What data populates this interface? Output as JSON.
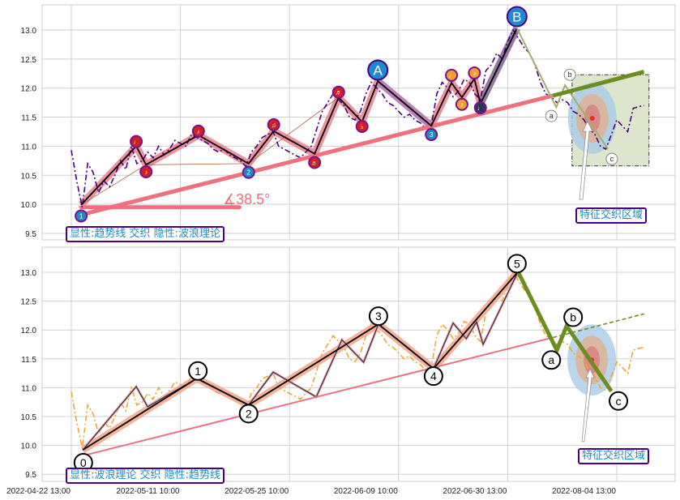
{
  "colors": {
    "trend": "#f07080",
    "wave_black": "#000000",
    "price_top": "#4b0082",
    "price_bottom": "#f0a830",
    "correction": "#6b8e23",
    "band_pink": "#e88090",
    "band_orange": "#f4a080",
    "band_purple": "#b080c0",
    "zone_fill": "#dde5cc",
    "label_blue": "#1f8ac0",
    "box_border": "#4b0082"
  },
  "x_tick_labels": [
    "2022-04-22 13:00",
    "2022-05-11 10:00",
    "2022-05-25 10:00",
    "2022-06-09 10:00",
    "2022-06-30 13:00",
    "2022-08-04 13:00"
  ],
  "x_tick_index": [
    0,
    20,
    40,
    60,
    80,
    100
  ],
  "annotations": {
    "angle": "∡38.5°",
    "zone_top": "特征交织区域",
    "zone_bottom": "特征交织区域",
    "legend_top": "显性:趋势线 交织 隐性:波浪理论",
    "legend_bottom": "显性:波浪理论 交织 隐性:趋势线"
  },
  "chart_data": [
    {
      "type": "line",
      "panel": "top",
      "ylim": [
        9.39,
        13.43
      ],
      "xlim": [
        -5.4,
        110.6
      ],
      "grid": true,
      "yticks": [
        9.5,
        10.0,
        10.5,
        11.0,
        11.5,
        12.0,
        12.5,
        13.0
      ],
      "price": [
        10.93,
        10.4,
        9.95,
        10.7,
        10.55,
        10.2,
        10.4,
        10.3,
        10.5,
        10.75,
        10.6,
        11.0,
        10.7,
        10.75,
        10.9,
        10.8,
        11.0,
        10.85,
        10.95,
        11.1,
        11.05,
        11.0,
        11.2,
        11.15,
        11.1,
        11.05,
        10.95,
        10.9,
        10.95,
        10.85,
        10.8,
        10.75,
        10.65,
        10.9,
        11.0,
        11.15,
        11.2,
        11.25,
        11.0,
        10.95,
        10.9,
        10.85,
        10.8,
        10.9,
        11.0,
        11.3,
        11.6,
        11.75,
        11.9,
        11.8,
        11.7,
        11.5,
        11.45,
        11.6,
        11.9,
        12.1,
        12.0,
        11.9,
        11.75,
        11.7,
        11.6,
        11.5,
        11.55,
        11.45,
        11.4,
        11.3,
        11.35,
        11.9,
        12.1,
        12.0,
        11.85,
        11.95,
        12.15,
        12.1,
        11.9,
        11.8,
        12.3,
        12.4,
        12.6,
        12.5,
        12.8,
        13.0,
        12.85,
        12.7,
        12.6,
        12.4,
        12.1,
        11.9,
        11.85,
        11.75,
        11.8,
        11.75,
        11.6,
        11.55,
        11.45,
        11.3,
        11.2,
        11.0,
        10.95,
        11.2,
        11.45,
        11.35,
        11.25,
        11.65,
        11.68,
        11.7
      ],
      "waves": [
        [
          1.8,
          9.99
        ],
        [
          11.9,
          11.0
        ],
        [
          13.7,
          10.68
        ],
        [
          23.3,
          11.19
        ],
        [
          32.5,
          10.7
        ],
        [
          37.1,
          11.26
        ],
        [
          44.6,
          10.87
        ],
        [
          49.0,
          11.84
        ],
        [
          53.3,
          11.42
        ],
        [
          56.2,
          12.12
        ],
        [
          66.0,
          11.35
        ],
        [
          69.7,
          12.09
        ],
        [
          71.6,
          11.84
        ],
        [
          73.9,
          12.16
        ],
        [
          75.0,
          11.73
        ],
        [
          81.7,
          13.03
        ]
      ],
      "markers": [
        {
          "i": 1.8,
          "v": 9.8,
          "glyph": "1",
          "color": "#1f8ac0"
        },
        {
          "i": 11.9,
          "v": 11.08,
          "glyph": "♩",
          "color": "#d02020"
        },
        {
          "i": 13.7,
          "v": 10.56,
          "glyph": "♪",
          "color": "#d02020"
        },
        {
          "i": 23.3,
          "v": 11.26,
          "glyph": "♪",
          "color": "#d02020"
        },
        {
          "i": 32.5,
          "v": 10.55,
          "glyph": "2",
          "color": "#1f8ac0"
        },
        {
          "i": 37.1,
          "v": 11.37,
          "glyph": "♫",
          "color": "#d02020"
        },
        {
          "i": 44.6,
          "v": 10.72,
          "glyph": "♬",
          "color": "#d02020"
        },
        {
          "i": 49.0,
          "v": 11.93,
          "glyph": "♬",
          "color": "#d02020"
        },
        {
          "i": 53.3,
          "v": 11.34,
          "glyph": "♭",
          "color": "#d02020"
        },
        {
          "i": 66.0,
          "v": 11.2,
          "glyph": "3",
          "color": "#1f8ac0"
        },
        {
          "i": 69.7,
          "v": 12.22,
          "glyph": "♩",
          "color": "#f0a030"
        },
        {
          "i": 71.6,
          "v": 11.72,
          "glyph": "♪",
          "color": "#f0a030"
        },
        {
          "i": 73.9,
          "v": 12.26,
          "glyph": "♪",
          "color": "#f0a030"
        },
        {
          "i": 75.0,
          "v": 11.66,
          "glyph": "♩",
          "color": "#333355"
        }
      ],
      "big_labels": [
        {
          "i": 56.2,
          "v": 12.31,
          "text": "A"
        },
        {
          "i": 81.7,
          "v": 13.23,
          "text": "B"
        }
      ],
      "correction": [
        [
          81.7,
          13.03
        ],
        [
          88.9,
          11.67
        ],
        [
          90.5,
          12.05
        ],
        [
          98.4,
          10.95
        ]
      ],
      "correction_labels": [
        {
          "i": 88.0,
          "v": 11.52,
          "text": "a"
        },
        {
          "i": 91.4,
          "v": 12.23,
          "text": "b"
        },
        {
          "i": 99.1,
          "v": 10.78,
          "text": "c"
        }
      ],
      "trendline": [
        [
          1.8,
          9.82
        ],
        [
          88.3,
          11.87
        ]
      ],
      "trend_extension": [
        [
          88.3,
          11.87
        ],
        [
          105.0,
          12.28
        ]
      ],
      "angle_baseline": [
        [
          1.8,
          9.95
        ],
        [
          30.8,
          9.95
        ]
      ],
      "zone": {
        "i0": 91.8,
        "i1": 105.9,
        "v0": 10.66,
        "v1": 12.23,
        "center_i": 95.5,
        "center_v": 11.48
      }
    },
    {
      "type": "line",
      "panel": "bottom",
      "ylim": [
        9.38,
        13.44
      ],
      "xlim": [
        -5.4,
        110.6
      ],
      "grid": true,
      "yticks": [
        9.5,
        10.0,
        10.5,
        11.0,
        11.5,
        12.0,
        12.5,
        13.0
      ],
      "waves_main": [
        [
          2.1,
          9.92
        ],
        [
          23.0,
          11.16
        ],
        [
          32.5,
          10.7
        ],
        [
          56.3,
          12.1
        ],
        [
          66.4,
          11.33
        ],
        [
          81.9,
          13.01
        ]
      ],
      "wave_labels": [
        {
          "i": 2.2,
          "v": 9.7,
          "text": "0"
        },
        {
          "i": 23.2,
          "v": 11.29,
          "text": "1"
        },
        {
          "i": 32.5,
          "v": 10.55,
          "text": "2"
        },
        {
          "i": 56.3,
          "v": 12.24,
          "text": "3"
        },
        {
          "i": 66.4,
          "v": 11.2,
          "text": "4"
        },
        {
          "i": 81.7,
          "v": 13.15,
          "text": "5"
        }
      ],
      "subwaves": [
        [
          2.1,
          9.92
        ],
        [
          11.9,
          11.02
        ],
        [
          14.0,
          10.67
        ],
        [
          23.0,
          11.16
        ],
        [
          32.5,
          10.7
        ],
        [
          37.0,
          11.27
        ],
        [
          44.9,
          10.84
        ],
        [
          49.6,
          11.83
        ],
        [
          53.6,
          11.44
        ],
        [
          56.3,
          12.1
        ],
        [
          66.4,
          11.33
        ],
        [
          70.0,
          12.12
        ],
        [
          72.4,
          11.85
        ],
        [
          74.3,
          12.14
        ],
        [
          75.5,
          11.75
        ],
        [
          81.9,
          13.01
        ]
      ],
      "correction": [
        [
          81.9,
          13.01
        ],
        [
          89.0,
          11.65
        ],
        [
          90.8,
          12.07
        ],
        [
          99.0,
          10.94
        ]
      ],
      "correction_labels": [
        {
          "i": 88.0,
          "v": 11.48,
          "text": "a"
        },
        {
          "i": 92.0,
          "v": 12.22,
          "text": "b"
        },
        {
          "i": 100.3,
          "v": 10.77,
          "text": "c"
        }
      ],
      "trendline": [
        [
          2.1,
          9.82
        ],
        [
          88.3,
          11.87
        ]
      ],
      "trend_extension": [
        [
          88.3,
          11.87
        ],
        [
          105.0,
          12.28
        ]
      ],
      "zone": {
        "center_i": 95.4,
        "center_v": 11.48
      }
    }
  ]
}
